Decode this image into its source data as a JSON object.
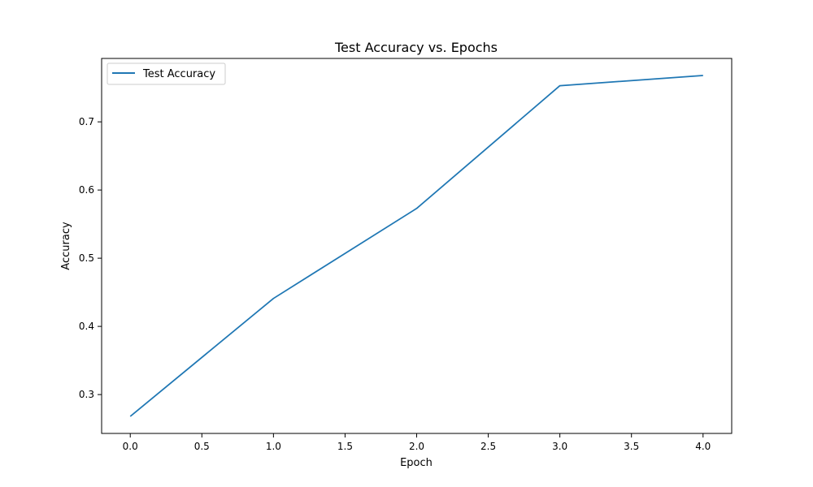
{
  "chart_data": {
    "type": "line",
    "title": "Test Accuracy vs. Epochs",
    "xlabel": "Epoch",
    "ylabel": "Accuracy",
    "xlim": [
      -0.2,
      4.2
    ],
    "ylim": [
      0.243,
      0.793
    ],
    "xticks": [
      0.0,
      0.5,
      1.0,
      1.5,
      2.0,
      2.5,
      3.0,
      3.5,
      4.0
    ],
    "xtick_labels": [
      "0.0",
      "0.5",
      "1.0",
      "1.5",
      "2.0",
      "2.5",
      "3.0",
      "3.5",
      "4.0"
    ],
    "yticks": [
      0.3,
      0.4,
      0.5,
      0.6,
      0.7
    ],
    "ytick_labels": [
      "0.3",
      "0.4",
      "0.5",
      "0.6",
      "0.7"
    ],
    "grid": false,
    "legend": {
      "placement": "upper-left"
    },
    "series": [
      {
        "name": "Test Accuracy",
        "color": "#1f77b4",
        "x": [
          0,
          1,
          2,
          3,
          4
        ],
        "y": [
          0.268,
          0.441,
          0.573,
          0.753,
          0.768
        ]
      }
    ]
  }
}
